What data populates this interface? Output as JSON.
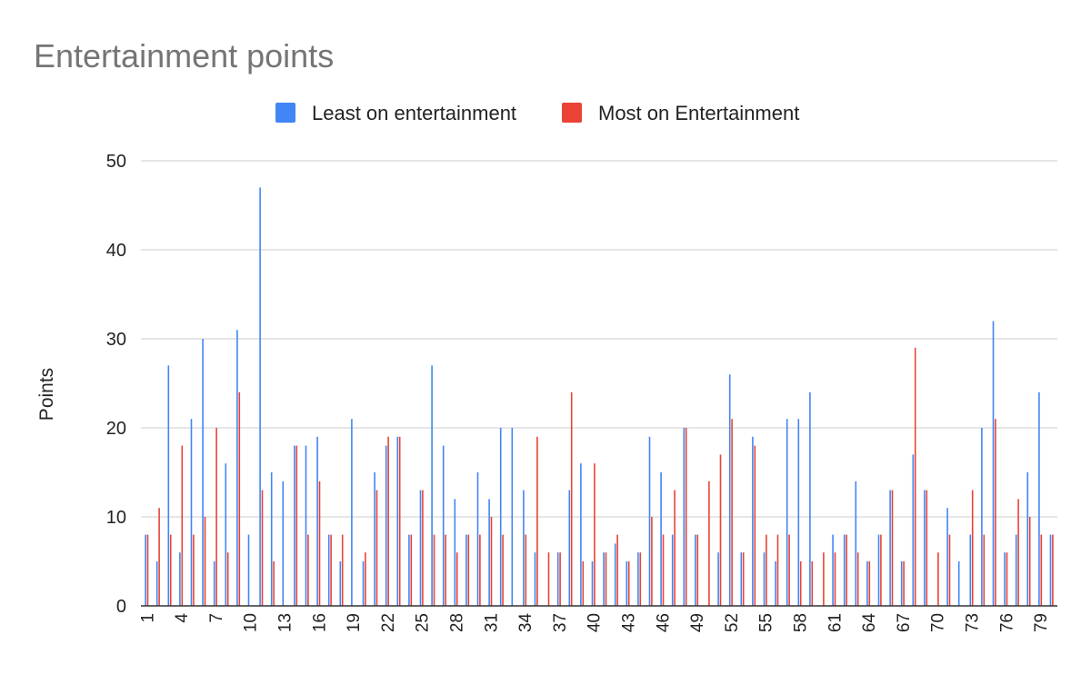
{
  "chart_data": {
    "type": "bar",
    "title": "Entertainment points",
    "xlabel": "",
    "ylabel": "Points",
    "ylim": [
      0,
      50
    ],
    "yticks": [
      0,
      10,
      20,
      30,
      40,
      50
    ],
    "xtick_labels": [
      "1",
      "4",
      "7",
      "10",
      "13",
      "16",
      "19",
      "22",
      "25",
      "28",
      "31",
      "34",
      "37",
      "40",
      "43",
      "46",
      "49",
      "52",
      "55",
      "58",
      "61",
      "64",
      "67",
      "70",
      "73",
      "76",
      "79"
    ],
    "grid": true,
    "legend_position": "top",
    "categories": [
      "1",
      "2",
      "3",
      "4",
      "5",
      "6",
      "7",
      "8",
      "9",
      "10",
      "11",
      "12",
      "13",
      "14",
      "15",
      "16",
      "17",
      "18",
      "19",
      "20",
      "21",
      "22",
      "23",
      "24",
      "25",
      "26",
      "27",
      "28",
      "29",
      "30",
      "31",
      "32",
      "33",
      "34",
      "35",
      "36",
      "37",
      "38",
      "39",
      "40",
      "41",
      "42",
      "43",
      "44",
      "45",
      "46",
      "47",
      "48",
      "49",
      "50",
      "51",
      "52",
      "53",
      "54",
      "55",
      "56",
      "57",
      "58",
      "59",
      "60",
      "61",
      "62",
      "63",
      "64",
      "65",
      "66",
      "67",
      "68",
      "69",
      "70",
      "71",
      "72",
      "73",
      "74",
      "75",
      "76",
      "77",
      "78",
      "79",
      "80"
    ],
    "series": [
      {
        "name": "Least on entertainment",
        "color": "#4285f4",
        "values": [
          8,
          5,
          27,
          6,
          21,
          30,
          5,
          16,
          31,
          8,
          47,
          15,
          14,
          18,
          18,
          19,
          8,
          5,
          21,
          5,
          15,
          18,
          19,
          8,
          13,
          27,
          18,
          12,
          8,
          15,
          12,
          20,
          20,
          13,
          6,
          0,
          6,
          13,
          16,
          5,
          6,
          7,
          5,
          6,
          19,
          15,
          8,
          20,
          8,
          0,
          6,
          26,
          6,
          19,
          6,
          5,
          21,
          21,
          24,
          0,
          8,
          8,
          14,
          5,
          8,
          13,
          5,
          17,
          13,
          0,
          11,
          5,
          8,
          20,
          32,
          6,
          8,
          15,
          24,
          8
        ]
      },
      {
        "name": "Most on Entertainment",
        "color": "#ea4335",
        "values": [
          8,
          11,
          8,
          18,
          8,
          10,
          20,
          6,
          24,
          0,
          13,
          5,
          0,
          18,
          8,
          14,
          8,
          8,
          0,
          6,
          13,
          19,
          19,
          8,
          13,
          8,
          8,
          6,
          8,
          8,
          10,
          8,
          0,
          8,
          19,
          6,
          6,
          24,
          5,
          16,
          6,
          8,
          5,
          6,
          10,
          8,
          13,
          20,
          8,
          14,
          17,
          21,
          6,
          18,
          8,
          8,
          8,
          5,
          5,
          6,
          6,
          8,
          6,
          5,
          8,
          13,
          5,
          29,
          13,
          6,
          8,
          0,
          13,
          8,
          21,
          6,
          12,
          10,
          8,
          8
        ]
      }
    ]
  }
}
